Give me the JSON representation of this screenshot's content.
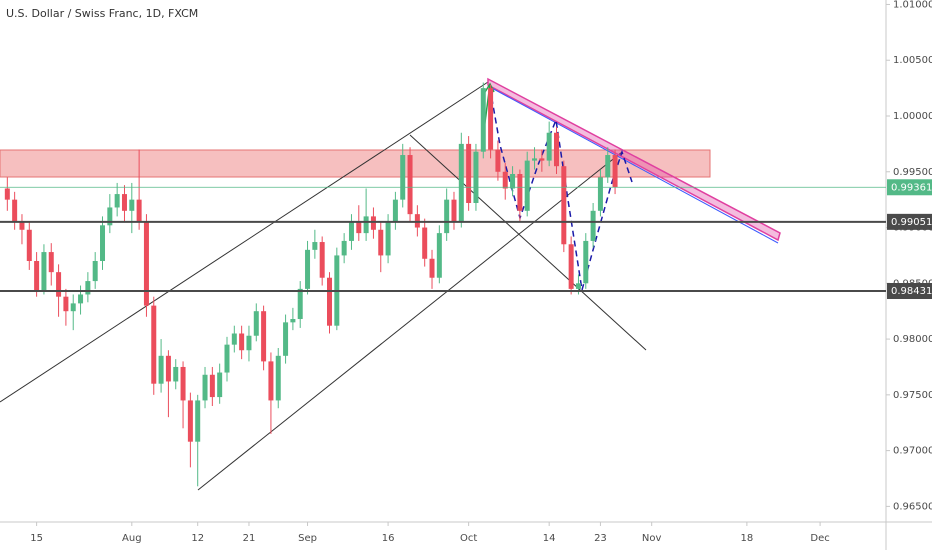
{
  "chart_data": {
    "type": "candlestick",
    "title": "U.S. Dollar / Swiss Franc, 1D, FXCM",
    "up_color": "#53b987",
    "down_color": "#eb4d5c",
    "open": [
      0.9935,
      0.9925,
      0.9905,
      0.9898,
      0.987,
      0.9843,
      0.9878,
      0.986,
      0.9838,
      0.9825,
      0.9832,
      0.984,
      0.9852,
      0.987,
      0.9902,
      0.9918,
      0.993,
      0.9915,
      0.9925,
      0.9905,
      0.983,
      0.976,
      0.9785,
      0.9762,
      0.9775,
      0.9745,
      0.9708,
      0.9745,
      0.9768,
      0.9748,
      0.977,
      0.9795,
      0.9805,
      0.979,
      0.9803,
      0.9825,
      0.978,
      0.9745,
      0.9785,
      0.9815,
      0.9818,
      0.9845,
      0.988,
      0.9887,
      0.9855,
      0.9812,
      0.9875,
      0.9888,
      0.9905,
      0.9895,
      0.991,
      0.9898,
      0.9875,
      0.9905,
      0.9925,
      0.9965,
      0.9912,
      0.99,
      0.9872,
      0.9855,
      0.9895,
      0.9925,
      0.9905,
      0.9975,
      0.9922,
      0.9968,
      1.0025,
      0.997,
      0.995,
      0.9935,
      0.9948,
      0.9915,
      0.996,
      0.9962,
      0.996,
      0.9985,
      0.9955,
      0.9885,
      0.9845,
      0.985,
      0.9888,
      0.9915,
      0.9945,
      0.9965
    ],
    "high": [
      0.9945,
      0.9932,
      0.9912,
      0.9905,
      0.9878,
      0.9885,
      0.9886,
      0.9867,
      0.9845,
      0.984,
      0.9848,
      0.986,
      0.9878,
      0.991,
      0.993,
      0.994,
      0.9938,
      0.994,
      0.997,
      0.9912,
      0.9838,
      0.98,
      0.979,
      0.9782,
      0.978,
      0.9752,
      0.975,
      0.9775,
      0.9775,
      0.9778,
      0.9802,
      0.9812,
      0.9812,
      0.9812,
      0.9832,
      0.983,
      0.9788,
      0.9792,
      0.9822,
      0.9828,
      0.9852,
      0.9888,
      0.9898,
      0.9892,
      0.986,
      0.9882,
      0.9895,
      0.9912,
      0.992,
      0.9935,
      0.9918,
      0.9905,
      0.9912,
      0.9932,
      0.9975,
      0.9972,
      0.992,
      0.9908,
      0.988,
      0.9902,
      0.9935,
      0.9932,
      0.9985,
      0.9982,
      0.9975,
      1.003,
      1.0028,
      0.9978,
      0.9958,
      0.9955,
      0.9952,
      0.9968,
      0.9972,
      0.997,
      0.9995,
      0.999,
      0.996,
      0.9892,
      0.9858,
      0.9895,
      0.9922,
      0.9952,
      0.9972,
      0.997
    ],
    "low": [
      0.9915,
      0.9898,
      0.9885,
      0.9862,
      0.9838,
      0.984,
      0.9848,
      0.982,
      0.9812,
      0.9808,
      0.9822,
      0.9833,
      0.9845,
      0.9862,
      0.9895,
      0.991,
      0.9905,
      0.9895,
      0.9898,
      0.982,
      0.975,
      0.9752,
      0.973,
      0.9755,
      0.972,
      0.9685,
      0.9668,
      0.9738,
      0.974,
      0.9742,
      0.9762,
      0.9788,
      0.9782,
      0.978,
      0.9798,
      0.9772,
      0.9715,
      0.9738,
      0.9778,
      0.9808,
      0.981,
      0.984,
      0.9872,
      0.9848,
      0.9805,
      0.9808,
      0.9868,
      0.988,
      0.9888,
      0.9888,
      0.989,
      0.986,
      0.9868,
      0.9898,
      0.9918,
      0.9905,
      0.9892,
      0.9865,
      0.9845,
      0.985,
      0.9888,
      0.9898,
      0.99,
      0.9915,
      0.9915,
      0.9962,
      0.9962,
      0.9942,
      0.9925,
      0.9928,
      0.9905,
      0.991,
      0.9952,
      0.995,
      0.9955,
      0.9948,
      0.9878,
      0.984,
      0.984,
      0.9845,
      0.9882,
      0.991,
      0.994,
      0.993
    ],
    "close": [
      0.9925,
      0.9905,
      0.9898,
      0.987,
      0.9843,
      0.9878,
      0.986,
      0.9838,
      0.9825,
      0.9832,
      0.984,
      0.9852,
      0.987,
      0.9902,
      0.9918,
      0.993,
      0.9915,
      0.9925,
      0.9905,
      0.983,
      0.976,
      0.9785,
      0.9762,
      0.9775,
      0.9745,
      0.9708,
      0.9745,
      0.9768,
      0.9748,
      0.977,
      0.9795,
      0.9805,
      0.979,
      0.9803,
      0.9825,
      0.978,
      0.9745,
      0.9785,
      0.9815,
      0.9818,
      0.9845,
      0.988,
      0.9887,
      0.9855,
      0.9812,
      0.9875,
      0.9888,
      0.9905,
      0.9895,
      0.991,
      0.9898,
      0.9875,
      0.9905,
      0.9925,
      0.9965,
      0.9912,
      0.99,
      0.9872,
      0.9855,
      0.9895,
      0.9925,
      0.9905,
      0.9975,
      0.9922,
      0.9968,
      1.0025,
      0.997,
      0.995,
      0.9935,
      0.9948,
      0.9915,
      0.996,
      0.9962,
      0.996,
      0.9985,
      0.9955,
      0.9885,
      0.9845,
      0.985,
      0.9888,
      0.9915,
      0.9945,
      0.9965,
      0.9936
    ],
    "xlim": [
      -1,
      120
    ],
    "xticks": [
      {
        "value": 4,
        "label": "15"
      },
      {
        "value": 17,
        "label": "Aug"
      },
      {
        "value": 26,
        "label": "12"
      },
      {
        "value": 33,
        "label": "21"
      },
      {
        "value": 41,
        "label": "Sep"
      },
      {
        "value": 52,
        "label": "16"
      },
      {
        "value": 63,
        "label": "Oct"
      },
      {
        "value": 74,
        "label": "14"
      },
      {
        "value": 81,
        "label": "23"
      },
      {
        "value": 88,
        "label": "Nov"
      },
      {
        "value": 101,
        "label": "18"
      },
      {
        "value": 111,
        "label": "Dec"
      }
    ],
    "ylim": [
      0.9636,
      1.0104
    ],
    "yticks": [
      {
        "value": 0.965,
        "label": "0.96500"
      },
      {
        "value": 0.97,
        "label": "0.97000"
      },
      {
        "value": 0.975,
        "label": "0.97500"
      },
      {
        "value": 0.98,
        "label": "0.98000"
      },
      {
        "value": 0.985,
        "label": "0.98500"
      },
      {
        "value": 0.99,
        "label": "0.99000"
      },
      {
        "value": 0.995,
        "label": "0.99500"
      },
      {
        "value": 1.0,
        "label": "1.00000"
      },
      {
        "value": 1.005,
        "label": "1.00500"
      },
      {
        "value": 1.01,
        "label": "1.01000"
      }
    ],
    "grid": false,
    "price_lines": [
      {
        "value": 0.99051,
        "label": "0.99051",
        "color": "#4a4a4a"
      },
      {
        "value": 0.98431,
        "label": "0.98431",
        "color": "#4a4a4a"
      }
    ],
    "last_price": {
      "value": 0.99361,
      "label": "0.99361",
      "color": "#53b987"
    }
  }
}
